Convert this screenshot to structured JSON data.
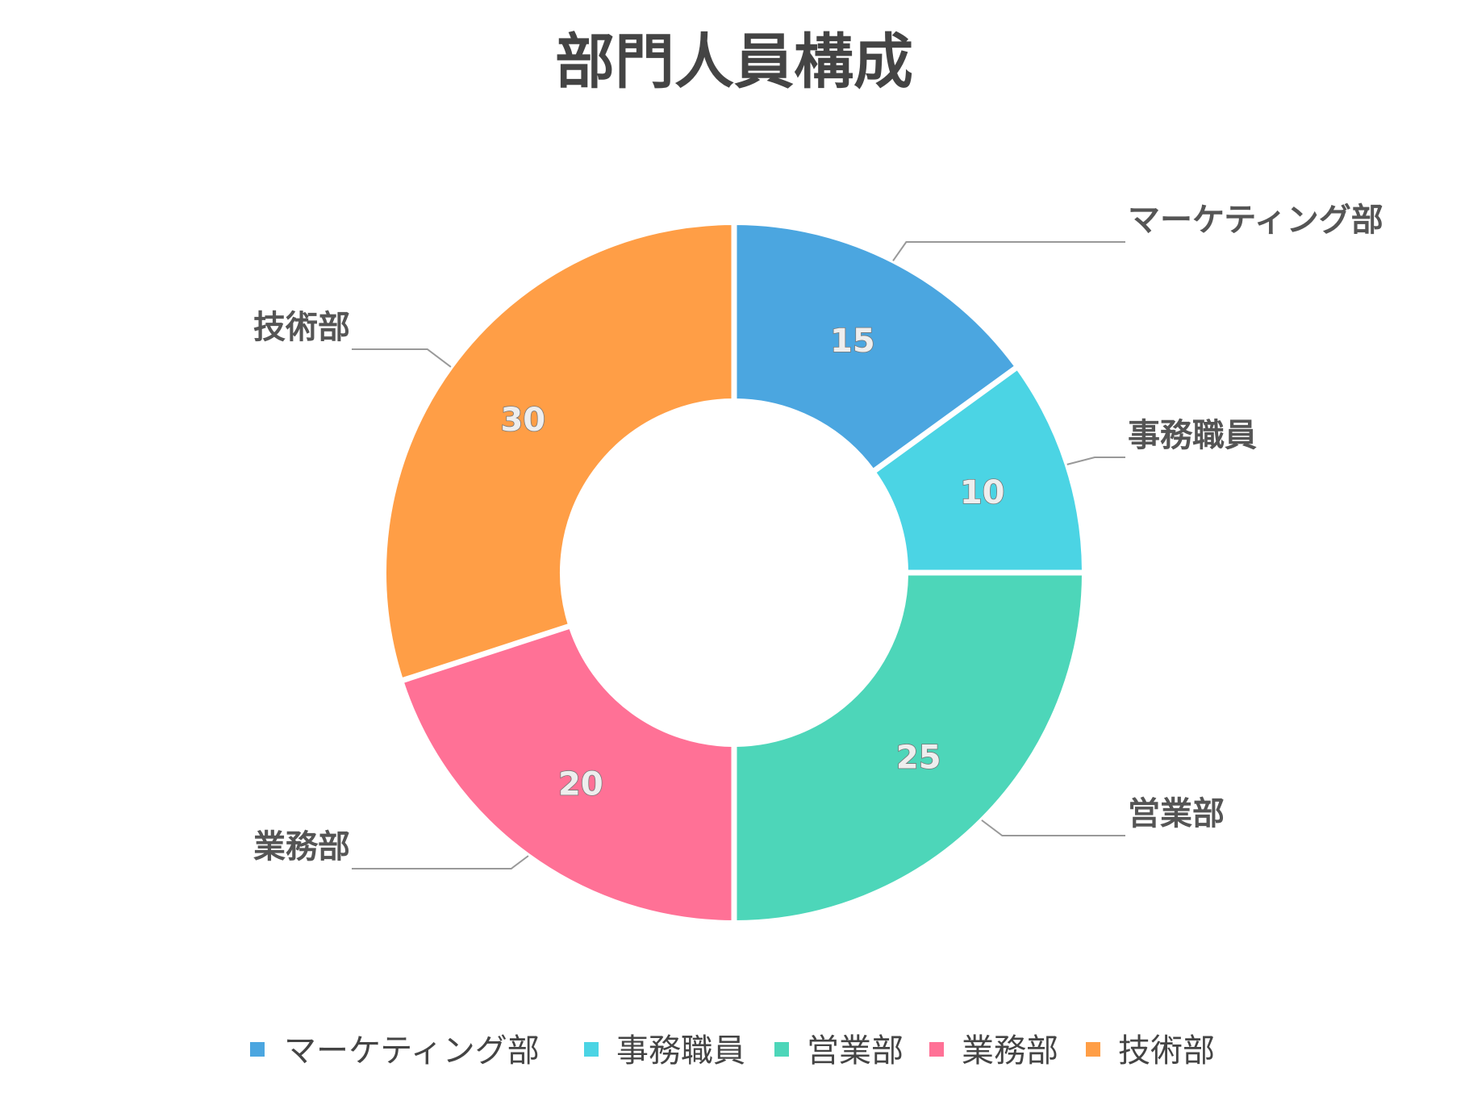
{
  "chart_data": {
    "type": "pie",
    "variant": "donut",
    "title": "部門人員構成",
    "categories": [
      "マーケティング部",
      "事務職員",
      "営業部",
      "業務部",
      "技術部"
    ],
    "values": [
      15,
      10,
      25,
      20,
      30
    ],
    "colors": [
      "#4BA6E0",
      "#4BD4E4",
      "#4DD6B9",
      "#FF7196",
      "#FF9E46"
    ],
    "show_values": true,
    "show_category_labels": true,
    "legend": {
      "position": "bottom",
      "items": [
        "マーケティング部",
        "事務職員",
        "営業部",
        "業務部",
        "技術部"
      ]
    }
  }
}
